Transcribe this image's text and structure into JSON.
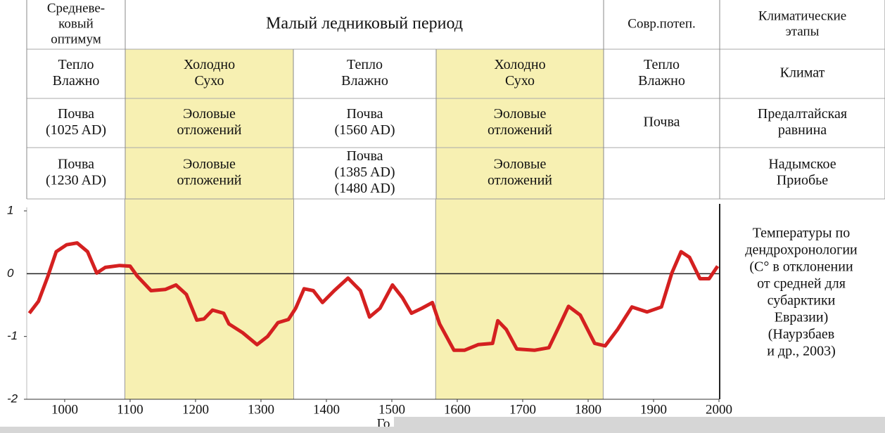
{
  "table": {
    "header": [
      [
        "Средневе-",
        "ковый",
        "оптимум"
      ],
      [
        "Малый ледниковый период"
      ],
      [
        "Совр.потеп."
      ],
      [
        "Климатические",
        "этапы"
      ]
    ],
    "rows": [
      [
        [
          "Тепло",
          "Влажно"
        ],
        [
          "Холодно",
          "Сухо"
        ],
        [
          "Тепло",
          "Влажно"
        ],
        [
          "Холодно",
          "Сухо"
        ],
        [
          "Тепло",
          "Влажно"
        ],
        [
          "Климат"
        ]
      ],
      [
        [
          "Почва",
          "(1025 AD)"
        ],
        [
          "Эоловые",
          "отложений"
        ],
        [
          "Почва",
          "(1560 AD)"
        ],
        [
          "Эоловые",
          "отложений"
        ],
        [
          "Почва"
        ],
        [
          "Предалтайская",
          "равнина"
        ]
      ],
      [
        [
          "Почва",
          "(1230 AD)"
        ],
        [
          "Эоловые",
          "отложений"
        ],
        [
          "Почва",
          "(1385 AD)",
          "(1480 AD)"
        ],
        [
          "Эоловые",
          "отложений"
        ],
        [],
        [
          "Надымское",
          "Приобье"
        ]
      ]
    ]
  },
  "chart_data": {
    "type": "line",
    "x_label": "Го",
    "x": [
      946,
      960,
      974,
      987,
      1003,
      1019,
      1035,
      1049,
      1062,
      1084,
      1100,
      1111,
      1132,
      1154,
      1170,
      1186,
      1202,
      1213,
      1226,
      1243,
      1251,
      1272,
      1294,
      1310,
      1326,
      1342,
      1353,
      1366,
      1380,
      1394,
      1412,
      1433,
      1452,
      1466,
      1482,
      1501,
      1516,
      1530,
      1546,
      1562,
      1573,
      1595,
      1611,
      1632,
      1654,
      1662,
      1675,
      1691,
      1718,
      1740,
      1756,
      1770,
      1788,
      1810,
      1826,
      1845,
      1867,
      1890,
      1912,
      1928,
      1942,
      1955,
      1971,
      1985,
      1998
    ],
    "series": [
      {
        "color": "#d42020",
        "values": [
          -0.63,
          -0.44,
          -0.05,
          0.35,
          0.46,
          0.49,
          0.35,
          0.01,
          0.1,
          0.13,
          0.12,
          -0.04,
          -0.27,
          -0.25,
          -0.18,
          -0.33,
          -0.74,
          -0.72,
          -0.58,
          -0.63,
          -0.8,
          -0.94,
          -1.13,
          -1.0,
          -0.78,
          -0.73,
          -0.55,
          -0.24,
          -0.27,
          -0.46,
          -0.27,
          -0.07,
          -0.27,
          -0.69,
          -0.55,
          -0.18,
          -0.38,
          -0.63,
          -0.55,
          -0.46,
          -0.8,
          -1.22,
          -1.22,
          -1.13,
          -1.11,
          -0.75,
          -0.89,
          -1.2,
          -1.22,
          -1.18,
          -0.83,
          -0.52,
          -0.66,
          -1.11,
          -1.15,
          -0.89,
          -0.53,
          -0.61,
          -0.53,
          0.01,
          0.35,
          0.26,
          -0.08,
          -0.08,
          0.12
        ]
      }
    ],
    "spans": [
      [
        1092,
        1350
      ],
      [
        1567,
        1823
      ]
    ],
    "span_color": "#f7f0b2",
    "xlim": [
      942,
      2000
    ],
    "xticks": [
      1000,
      1100,
      1200,
      1300,
      1400,
      1500,
      1600,
      1700,
      1800,
      1900,
      2000
    ],
    "ylim": [
      -2,
      1
    ],
    "yticks": [
      1,
      0,
      -1,
      -2
    ],
    "annotation": [
      "Температуры по",
      "дендрохронологии",
      "(C° в отклонении",
      "от средней для",
      "субарктики",
      "Евразии)",
      "(Наурзбаев",
      "и др., 2003)"
    ]
  }
}
